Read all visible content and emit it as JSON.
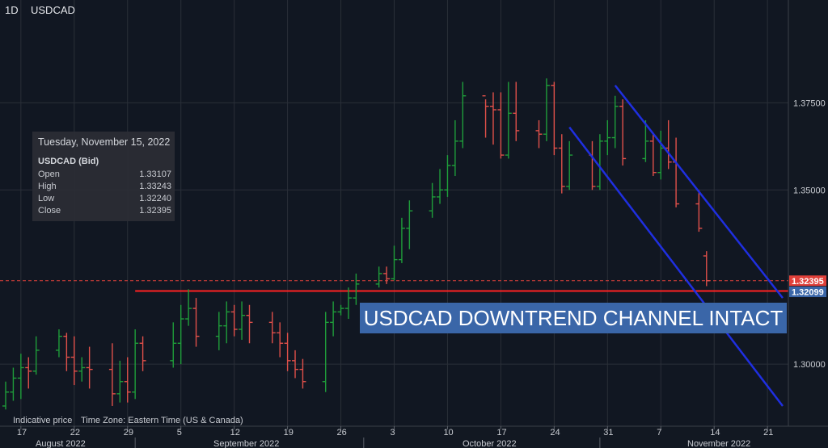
{
  "header": {
    "timeframe": "1D",
    "symbol": "USDCAD"
  },
  "info_panel": {
    "date": "Tuesday, November 15, 2022",
    "symbol": "USDCAD (Bid)",
    "rows": [
      {
        "label": "Open",
        "value": "1.33107"
      },
      {
        "label": "High",
        "value": "1.33243"
      },
      {
        "label": "Low",
        "value": "1.32240"
      },
      {
        "label": "Close",
        "value": "1.32395"
      }
    ]
  },
  "footer": {
    "indicative": "Indicative price",
    "timezone": "Time Zone: Eastern Time (US & Canada)"
  },
  "annotation": "USDCAD DOWNTREND CHANNEL INTACT",
  "colors": {
    "up": "#1f9d3a",
    "down": "#e0504a",
    "channel": "#1f2fe0",
    "support": "#ff2222",
    "price_tag": "#e0403a",
    "level_tag": "#3a66a8",
    "grid": "#2a2f38"
  },
  "chart_data": {
    "type": "ohlc",
    "ylim": [
      1.2822,
      1.4045
    ],
    "y_ticks": [
      "1.37500",
      "1.35000",
      "1.30000"
    ],
    "x_day_ticks": [
      "17",
      "22",
      "29",
      "5",
      "12",
      "19",
      "26",
      "3",
      "10",
      "17",
      "24",
      "31",
      "7",
      "14",
      "21"
    ],
    "x_month_labels": [
      "August 2022",
      "September 2022",
      "October 2022",
      "November 2022"
    ],
    "x_start_date": "2022-08-15",
    "x_end_date": "2022-11-25",
    "current_price": "1.32395",
    "support_level": "1.32099",
    "support_start_date": "2022-09-01",
    "channel_upper": [
      [
        "2022-11-03",
        1.38
      ],
      [
        "2022-11-25",
        1.319
      ]
    ],
    "channel_lower": [
      [
        "2022-10-28",
        1.368
      ],
      [
        "2022-11-25",
        1.288
      ]
    ],
    "bars": [
      [
        "2022-08-15",
        1.288,
        1.295,
        1.287,
        1.292
      ],
      [
        "2022-08-16",
        1.292,
        1.299,
        1.2895,
        1.296
      ],
      [
        "2022-08-17",
        1.296,
        1.303,
        1.29,
        1.299
      ],
      [
        "2022-08-18",
        1.299,
        1.302,
        1.293,
        1.298
      ],
      [
        "2022-08-19",
        1.298,
        1.308,
        1.297,
        1.304
      ],
      [
        "2022-08-22",
        1.304,
        1.31,
        1.302,
        1.308
      ],
      [
        "2022-08-23",
        1.308,
        1.309,
        1.298,
        1.302
      ],
      [
        "2022-08-24",
        1.302,
        1.308,
        1.294,
        1.298
      ],
      [
        "2022-08-25",
        1.298,
        1.302,
        1.295,
        1.299
      ],
      [
        "2022-08-26",
        1.299,
        1.305,
        1.293,
        1.2985
      ],
      [
        "2022-08-29",
        1.2985,
        1.306,
        1.288,
        1.2915
      ],
      [
        "2022-08-30",
        1.2915,
        1.301,
        1.289,
        1.295
      ],
      [
        "2022-08-31",
        1.295,
        1.302,
        1.289,
        1.292
      ],
      [
        "2022-09-01",
        1.292,
        1.31,
        1.29,
        1.306
      ],
      [
        "2022-09-02",
        1.306,
        1.308,
        1.298,
        1.301
      ],
      [
        "2022-09-06",
        1.301,
        1.312,
        1.299,
        1.306
      ],
      [
        "2022-09-07",
        1.306,
        1.317,
        1.3,
        1.313
      ],
      [
        "2022-09-08",
        1.313,
        1.3215,
        1.311,
        1.316
      ],
      [
        "2022-09-09",
        1.316,
        1.319,
        1.305,
        1.308
      ],
      [
        "2022-09-12",
        1.308,
        1.315,
        1.304,
        1.311
      ],
      [
        "2022-09-13",
        1.311,
        1.318,
        1.306,
        1.315
      ],
      [
        "2022-09-14",
        1.315,
        1.317,
        1.308,
        1.31
      ],
      [
        "2022-09-15",
        1.31,
        1.318,
        1.307,
        1.314
      ],
      [
        "2022-09-16",
        1.314,
        1.317,
        1.306,
        1.312
      ],
      [
        "2022-09-19",
        1.312,
        1.315,
        1.306,
        1.309
      ],
      [
        "2022-09-20",
        1.309,
        1.312,
        1.302,
        1.306
      ],
      [
        "2022-09-21",
        1.306,
        1.309,
        1.298,
        1.301
      ],
      [
        "2022-09-22",
        1.301,
        1.304,
        1.296,
        1.2985
      ],
      [
        "2022-09-23",
        1.2985,
        1.3015,
        1.293,
        1.295
      ],
      [
        "2022-09-26",
        1.295,
        1.315,
        1.292,
        1.312
      ],
      [
        "2022-09-27",
        1.312,
        1.318,
        1.308,
        1.315
      ],
      [
        "2022-09-28",
        1.315,
        1.317,
        1.314,
        1.316
      ],
      [
        "2022-09-29",
        1.316,
        1.322,
        1.313,
        1.319
      ],
      [
        "2022-09-30",
        1.319,
        1.326,
        1.317,
        1.323
      ],
      [
        "2022-10-03",
        1.323,
        1.328,
        1.322,
        1.326
      ],
      [
        "2022-10-04",
        1.326,
        1.328,
        1.323,
        1.3245
      ],
      [
        "2022-10-05",
        1.3245,
        1.334,
        1.324,
        1.33
      ],
      [
        "2022-10-06",
        1.33,
        1.342,
        1.329,
        1.339
      ],
      [
        "2022-10-07",
        1.339,
        1.347,
        1.333,
        1.344
      ],
      [
        "2022-10-10",
        1.344,
        1.352,
        1.342,
        1.348
      ],
      [
        "2022-10-11",
        1.348,
        1.356,
        1.346,
        1.35
      ],
      [
        "2022-10-12",
        1.35,
        1.36,
        1.348,
        1.357
      ],
      [
        "2022-10-13",
        1.357,
        1.37,
        1.354,
        1.364
      ],
      [
        "2022-10-14",
        1.364,
        1.381,
        1.362,
        1.377
      ],
      [
        "2022-10-17",
        1.377,
        1.376,
        1.365,
        1.374
      ],
      [
        "2022-10-18",
        1.374,
        1.378,
        1.363,
        1.373
      ],
      [
        "2022-10-19",
        1.373,
        1.378,
        1.359,
        1.36
      ],
      [
        "2022-10-20",
        1.36,
        1.381,
        1.359,
        1.372
      ],
      [
        "2022-10-21",
        1.372,
        1.381,
        1.364,
        1.367
      ],
      [
        "2022-10-24",
        1.367,
        1.37,
        1.362,
        1.366
      ],
      [
        "2022-10-25",
        1.366,
        1.382,
        1.364,
        1.38
      ],
      [
        "2022-10-26",
        1.38,
        1.381,
        1.36,
        1.362
      ],
      [
        "2022-10-27",
        1.362,
        1.366,
        1.349,
        1.351
      ],
      [
        "2022-10-28",
        1.351,
        1.364,
        1.35,
        1.36
      ],
      [
        "2022-10-31",
        1.36,
        1.364,
        1.35,
        1.351
      ],
      [
        "2022-11-01",
        1.351,
        1.366,
        1.35,
        1.364
      ],
      [
        "2022-11-02",
        1.364,
        1.37,
        1.36,
        1.365
      ],
      [
        "2022-11-03",
        1.365,
        1.377,
        1.362,
        1.374
      ],
      [
        "2022-11-04",
        1.374,
        1.376,
        1.357,
        1.359
      ],
      [
        "2022-11-07",
        1.359,
        1.37,
        1.358,
        1.364
      ],
      [
        "2022-11-08",
        1.364,
        1.366,
        1.354,
        1.355
      ],
      [
        "2022-11-09",
        1.355,
        1.367,
        1.353,
        1.362
      ],
      [
        "2022-11-10",
        1.362,
        1.37,
        1.356,
        1.358
      ],
      [
        "2022-11-11",
        1.358,
        1.365,
        1.345,
        1.346
      ],
      [
        "2022-11-14",
        1.346,
        1.35,
        1.338,
        1.339
      ],
      [
        "2022-11-15",
        1.33107,
        1.33243,
        1.3224,
        1.32395
      ]
    ]
  }
}
